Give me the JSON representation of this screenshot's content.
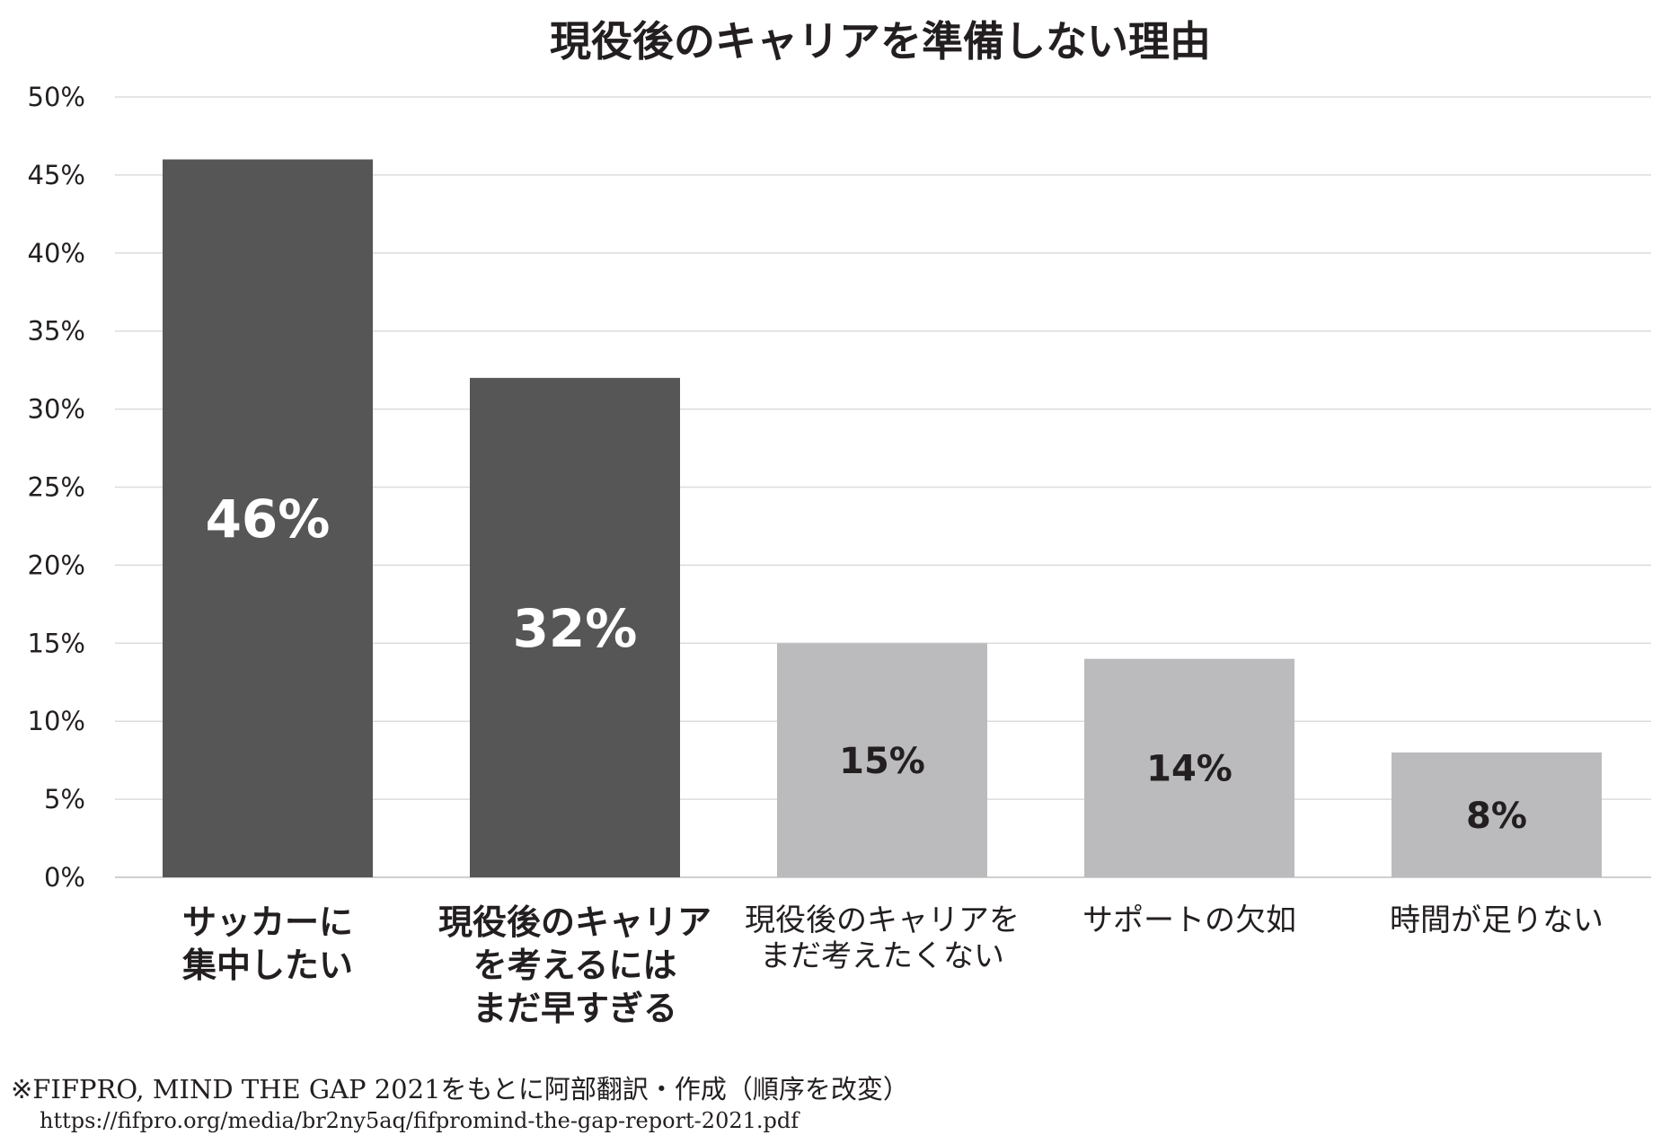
{
  "chart_data": {
    "type": "bar",
    "title": "現役後のキャリアを準備しない理由",
    "categories": [
      [
        "サッカーに",
        "集中したい"
      ],
      [
        "現役後のキャリア",
        "を考えるには",
        "まだ早すぎる"
      ],
      [
        "現役後のキャリアを",
        "まだ考えたくない"
      ],
      [
        "サポートの欠如"
      ],
      [
        "時間が足りない"
      ]
    ],
    "values": [
      46,
      32,
      15,
      14,
      8
    ],
    "data_labels": [
      "46%",
      "32%",
      "15%",
      "14%",
      "8%"
    ],
    "ylim": [
      0,
      50
    ],
    "yticks": [
      0,
      5,
      10,
      15,
      20,
      25,
      30,
      35,
      40,
      45,
      50
    ],
    "ytick_labels": [
      "0%",
      "5%",
      "10%",
      "15%",
      "20%",
      "25%",
      "30%",
      "35%",
      "40%",
      "45%",
      "50%"
    ],
    "grid": true,
    "colors": {
      "highlight_bar": "#565657",
      "normal_bar": "#bbbbbd",
      "highlight_label": "#ffffff",
      "normal_label": "#231f20"
    },
    "highlighted": [
      true,
      true,
      false,
      false,
      false
    ]
  },
  "footnote": {
    "source": "※FIFPRO, MIND THE GAP 2021をもとに阿部翻訳・作成（順序を改変）",
    "url": "https://fifpro.org/media/br2ny5aq/fifpromind-the-gap-report-2021.pdf"
  }
}
